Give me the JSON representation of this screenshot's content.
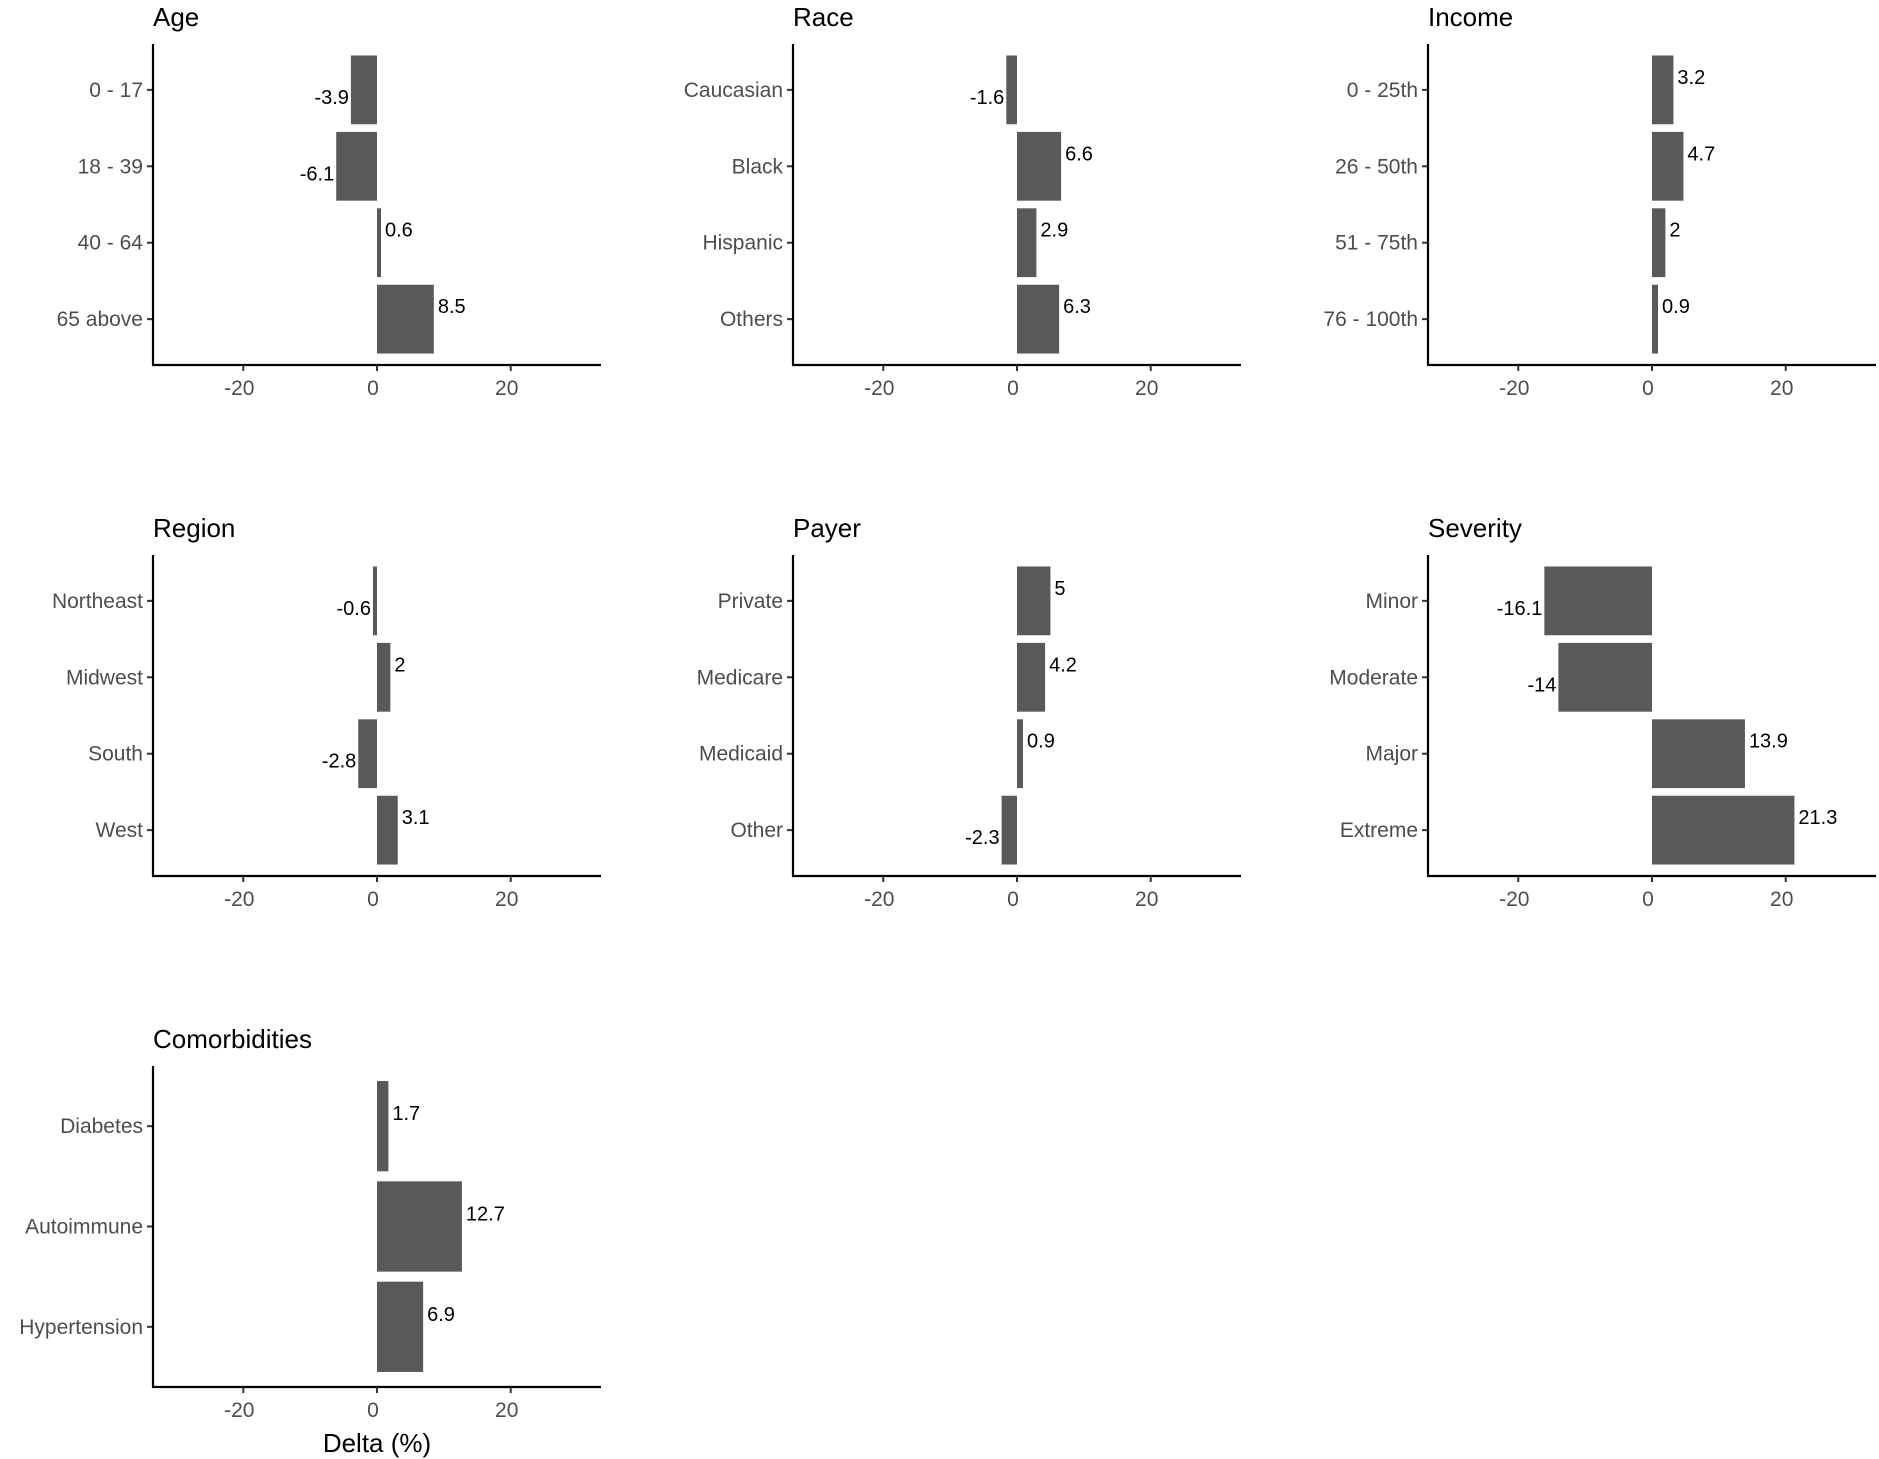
{
  "chart_data": {
    "type": "bar",
    "orientation": "horizontal",
    "layout": "faceted 3 columns",
    "bar_color": "#595959",
    "xlim": [
      -33.5,
      33.5
    ],
    "xticks": [
      -20,
      0,
      20
    ],
    "xlabel": "Delta (%)",
    "grid": false,
    "panels": [
      {
        "title": "Age",
        "categories": [
          "0 - 17",
          "18 - 39",
          "40 - 64",
          "65 above"
        ],
        "values": [
          -3.9,
          -6.1,
          0.6,
          8.5
        ]
      },
      {
        "title": "Race",
        "categories": [
          "Caucasian",
          "Black",
          "Hispanic",
          "Others"
        ],
        "values": [
          -1.6,
          6.6,
          2.9,
          6.3
        ]
      },
      {
        "title": "Income",
        "categories": [
          "0 - 25th",
          "26 - 50th",
          "51 - 75th",
          "76 - 100th"
        ],
        "values": [
          3.2,
          4.7,
          2,
          0.9
        ]
      },
      {
        "title": "Region",
        "categories": [
          "Northeast",
          "Midwest",
          "South",
          "West"
        ],
        "values": [
          -0.6,
          2,
          -2.8,
          3.1
        ]
      },
      {
        "title": "Payer",
        "categories": [
          "Private",
          "Medicare",
          "Medicaid",
          "Other"
        ],
        "values": [
          5,
          4.2,
          0.9,
          -2.3
        ]
      },
      {
        "title": "Severity",
        "categories": [
          "Minor",
          "Moderate",
          "Major",
          "Extreme"
        ],
        "values": [
          -16.1,
          -14,
          13.9,
          21.3
        ]
      },
      {
        "title": "Comorbidities",
        "categories": [
          "Diabetes",
          "Autoimmune",
          "Hypertension"
        ],
        "values": [
          1.7,
          12.7,
          6.9
        ]
      }
    ]
  }
}
